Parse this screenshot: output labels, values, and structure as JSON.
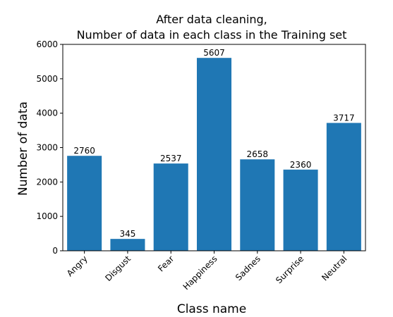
{
  "chart_data": {
    "type": "bar",
    "title_lines": [
      "After data cleaning,",
      "Number of data in each class in the Training set"
    ],
    "xlabel": "Class name",
    "ylabel": "Number of data",
    "categories": [
      "Angry",
      "Disgust",
      "Fear",
      "Happiness",
      "Sadnes",
      "Surprise",
      "Neutral"
    ],
    "values": [
      2760,
      345,
      2537,
      5607,
      2658,
      2360,
      3717
    ],
    "data_labels": [
      "2760",
      "345",
      "2537",
      "5607",
      "2658",
      "2360",
      "3717"
    ],
    "ylim": [
      0,
      6000
    ],
    "yticks": [
      0,
      1000,
      2000,
      3000,
      4000,
      5000,
      6000
    ],
    "ytick_labels": [
      "0",
      "1000",
      "2000",
      "3000",
      "4000",
      "5000",
      "6000"
    ],
    "bar_color": "#1f77b4",
    "grid": false,
    "legend": "none"
  }
}
